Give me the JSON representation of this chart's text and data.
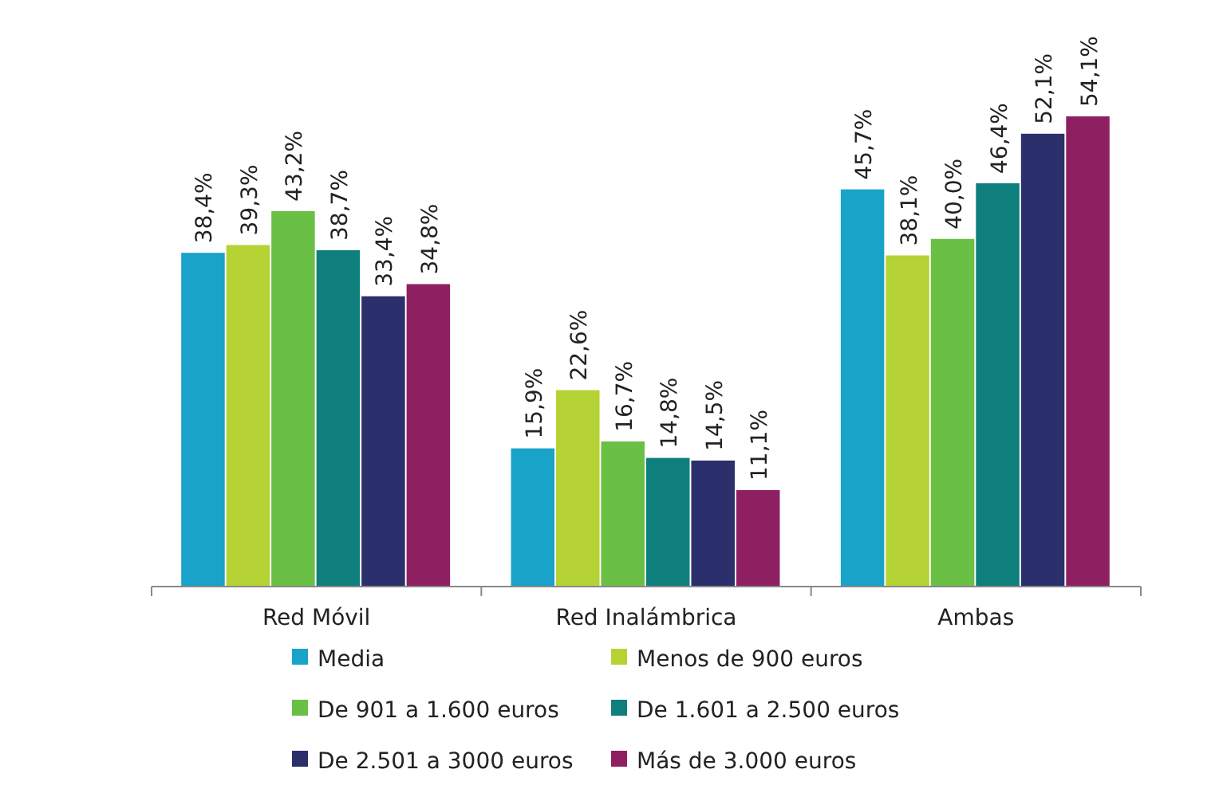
{
  "chart_data": {
    "type": "bar",
    "categories": [
      "Red Móvil",
      "Red Inalámbrica",
      "Ambas"
    ],
    "tick_labels": "x",
    "legend": "bottom",
    "grid": false,
    "series": [
      {
        "name": "Media",
        "color": "#1aa3c8",
        "values": [
          38.4,
          15.9,
          45.7
        ],
        "value_labels": [
          "38,4%",
          "15,9%",
          "45,7%"
        ]
      },
      {
        "name": "Menos de 900 euros",
        "color": "#b5d334",
        "values": [
          39.3,
          22.6,
          38.1
        ],
        "value_labels": [
          "39,3%",
          "22,6%",
          "38,1%"
        ]
      },
      {
        "name": "De 901 a 1.600 euros",
        "color": "#6abf45",
        "values": [
          43.2,
          16.7,
          40.0
        ],
        "value_labels": [
          "43,2%",
          "16,7%",
          "40,0%"
        ]
      },
      {
        "name": "De 1.601 a 2.500 euros",
        "color": "#0e7f7c",
        "values": [
          38.7,
          14.8,
          46.4
        ],
        "value_labels": [
          "38,7%",
          "14,8%",
          "46,4%"
        ]
      },
      {
        "name": "De 2.501 a 3000 euros",
        "color": "#2b2f6b",
        "values": [
          33.4,
          14.5,
          52.1
        ],
        "value_labels": [
          "33,4%",
          "14,5%",
          "52,1%"
        ]
      },
      {
        "name": "Más de 3.000 euros",
        "color": "#8e2062",
        "values": [
          34.8,
          11.1,
          54.1
        ],
        "value_labels": [
          "34,8%",
          "11,1%",
          "54,1%"
        ]
      }
    ]
  }
}
